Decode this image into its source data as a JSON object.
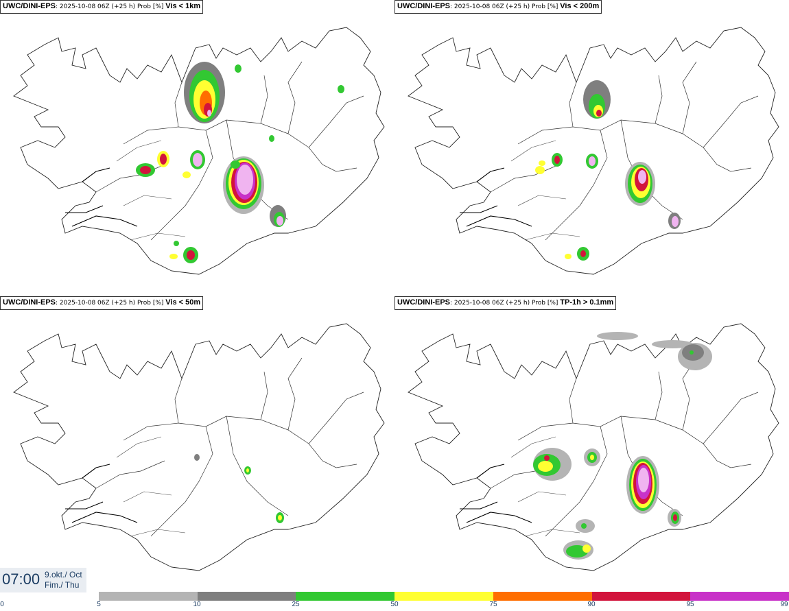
{
  "panels": [
    {
      "model": "UWC/DINI-EPS",
      "meta": ": 2025-10-08 06Z (+25 h) Prob [%] ",
      "variable": "Vis < 1km"
    },
    {
      "model": "UWC/DINI-EPS",
      "meta": ": 2025-10-08 06Z (+25 h) Prob [%] ",
      "variable": "Vis < 200m"
    },
    {
      "model": "UWC/DINI-EPS",
      "meta": ": 2025-10-08 06Z (+25 h) Prob [%] ",
      "variable": "Vis < 50m"
    },
    {
      "model": "UWC/DINI-EPS",
      "meta": ": 2025-10-08 06Z (+25 h) Prob [%] ",
      "variable": "TP-1h > 0.1mm"
    }
  ],
  "valid_time": {
    "time": "07:00",
    "date_line1": "9.okt./ Oct",
    "date_line2": "Fim./ Thu"
  },
  "colorbar": {
    "ticks": [
      "0",
      "5",
      "10",
      "25",
      "50",
      "75",
      "90",
      "95",
      "99"
    ],
    "colors": [
      "#b4b4b4",
      "#7f7f7f",
      "#32c832",
      "#ffff32",
      "#ff6e00",
      "#d2143c",
      "#c832c8",
      "#f0b4f0"
    ]
  },
  "colors": {
    "p5": "#b4b4b4",
    "p10": "#7f7f7f",
    "p25": "#32c832",
    "p50": "#ffff32",
    "p75": "#ff6e00",
    "p90": "#d2143c",
    "p95": "#c832c8",
    "p99": "#f0b4f0"
  }
}
